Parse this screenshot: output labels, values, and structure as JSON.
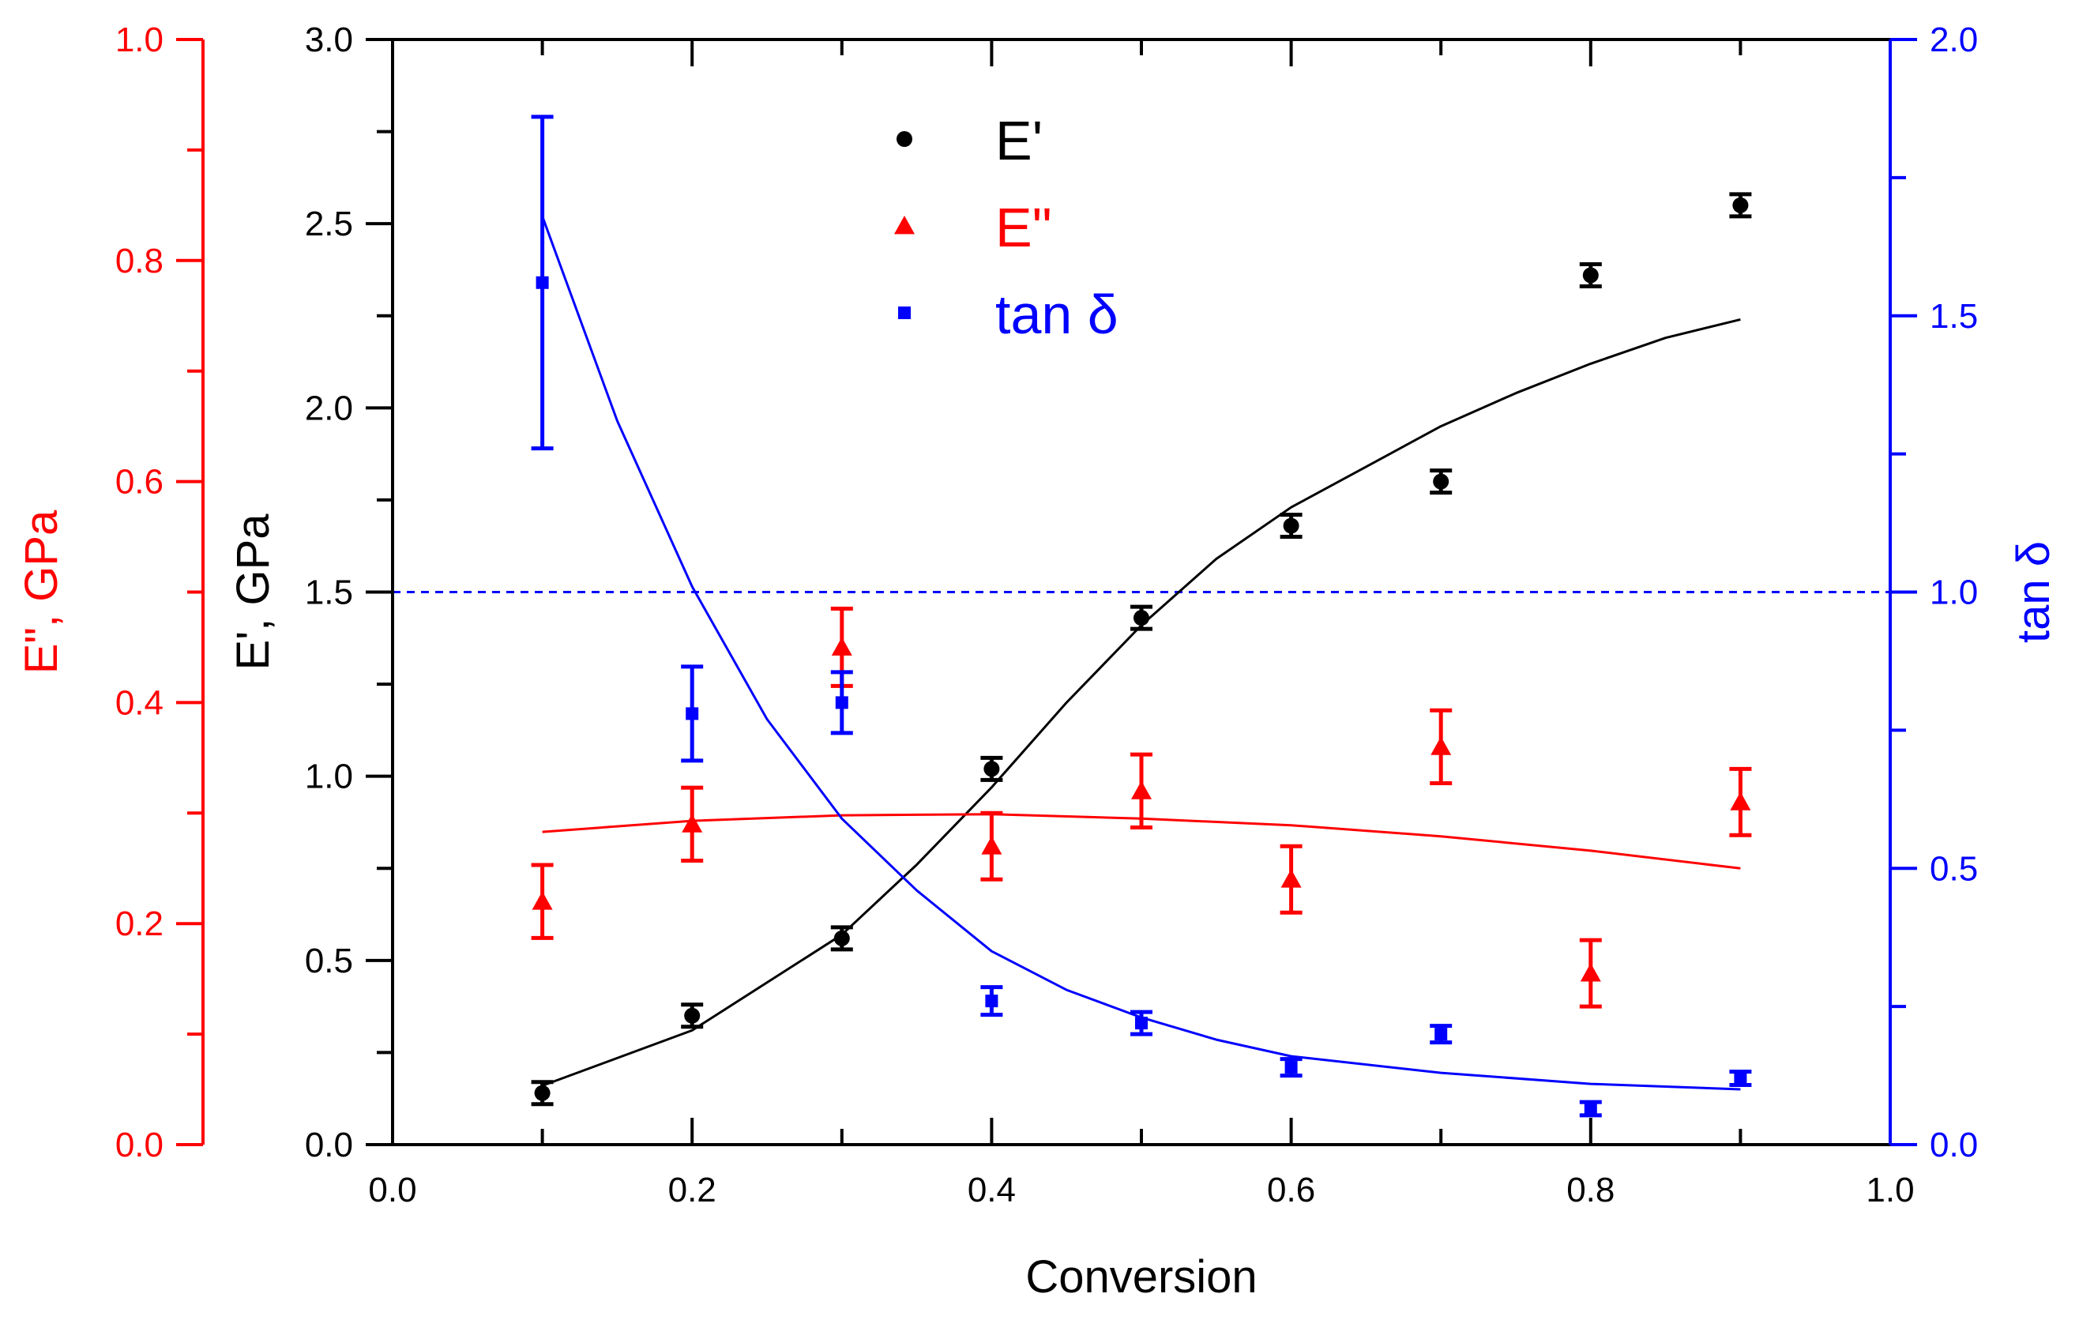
{
  "chart_data": {
    "type": "scatter",
    "title": "",
    "xlabel": "Conversion",
    "xlim": [
      0.0,
      1.0
    ],
    "xticks": [
      "0.0",
      "0.2",
      "0.4",
      "0.6",
      "0.8",
      "1.0"
    ],
    "axes": {
      "left_black": {
        "label": "E', GPa",
        "range": [
          0.0,
          3.0
        ],
        "ticks": [
          "0.0",
          "0.5",
          "1.0",
          "1.5",
          "2.0",
          "2.5",
          "3.0"
        ],
        "color": "#000000"
      },
      "left_red": {
        "label": "E\", GPa",
        "range": [
          0.0,
          1.0
        ],
        "ticks": [
          "0.0",
          "0.2",
          "0.4",
          "0.6",
          "0.8",
          "1.0"
        ],
        "color": "#ff0000"
      },
      "right_blue": {
        "label": "tan δ",
        "range": [
          0.0,
          2.0
        ],
        "ticks": [
          "0.0",
          "0.5",
          "1.0",
          "1.5",
          "2.0"
        ],
        "color": "#0000ff"
      }
    },
    "reference_line": {
      "axis": "right_blue",
      "value": 1.0,
      "style": "dashed",
      "color": "#0000ff"
    },
    "legend": {
      "position": "top-center",
      "entries": [
        {
          "label": "E'",
          "marker": "circle",
          "color": "#000000"
        },
        {
          "label": "E\"",
          "marker": "triangle",
          "color": "#ff0000"
        },
        {
          "label": "tan δ",
          "marker": "square",
          "color": "#0000ff"
        }
      ]
    },
    "series": [
      {
        "name": "E'",
        "axis": "left_black",
        "color": "#000000",
        "marker": "circle",
        "x": [
          0.1,
          0.2,
          0.3,
          0.4,
          0.5,
          0.6,
          0.7,
          0.8,
          0.9
        ],
        "y": [
          0.14,
          0.35,
          0.56,
          1.02,
          1.43,
          1.68,
          1.8,
          2.36,
          2.55
        ],
        "err": [
          0.03,
          0.03,
          0.03,
          0.03,
          0.03,
          0.03,
          0.03,
          0.03,
          0.03
        ],
        "fit_x": [
          0.1,
          0.2,
          0.3,
          0.35,
          0.4,
          0.45,
          0.5,
          0.55,
          0.6,
          0.65,
          0.7,
          0.75,
          0.8,
          0.85,
          0.9
        ],
        "fit_y": [
          0.16,
          0.31,
          0.57,
          0.76,
          0.97,
          1.2,
          1.41,
          1.59,
          1.73,
          1.84,
          1.95,
          2.04,
          2.12,
          2.19,
          2.24
        ]
      },
      {
        "name": "E\"",
        "axis": "left_red",
        "color": "#ff0000",
        "marker": "triangle",
        "x": [
          0.1,
          0.2,
          0.3,
          0.4,
          0.5,
          0.6,
          0.7,
          0.8,
          0.9
        ],
        "y": [
          0.22,
          0.29,
          0.45,
          0.27,
          0.32,
          0.24,
          0.36,
          0.155,
          0.31
        ],
        "err": [
          0.033,
          0.033,
          0.035,
          0.03,
          0.033,
          0.03,
          0.033,
          0.03,
          0.03
        ],
        "fit_x": [
          0.1,
          0.2,
          0.3,
          0.4,
          0.5,
          0.6,
          0.7,
          0.8,
          0.9
        ],
        "fit_y": [
          0.283,
          0.293,
          0.298,
          0.299,
          0.295,
          0.289,
          0.279,
          0.266,
          0.25
        ]
      },
      {
        "name": "tan δ",
        "axis": "right_blue",
        "color": "#0000ff",
        "marker": "square",
        "x": [
          0.1,
          0.2,
          0.3,
          0.4,
          0.5,
          0.6,
          0.7,
          0.8,
          0.9
        ],
        "y": [
          1.56,
          0.78,
          0.8,
          0.26,
          0.22,
          0.14,
          0.2,
          0.065,
          0.12
        ],
        "err": [
          0.3,
          0.085,
          0.055,
          0.025,
          0.02,
          0.015,
          0.015,
          0.012,
          0.012
        ],
        "fit_x": [
          0.1,
          0.15,
          0.2,
          0.25,
          0.3,
          0.35,
          0.4,
          0.45,
          0.5,
          0.55,
          0.6,
          0.7,
          0.8,
          0.9
        ],
        "fit_y": [
          1.68,
          1.31,
          1.01,
          0.77,
          0.59,
          0.46,
          0.35,
          0.28,
          0.23,
          0.19,
          0.16,
          0.13,
          0.11,
          0.1
        ]
      }
    ]
  }
}
